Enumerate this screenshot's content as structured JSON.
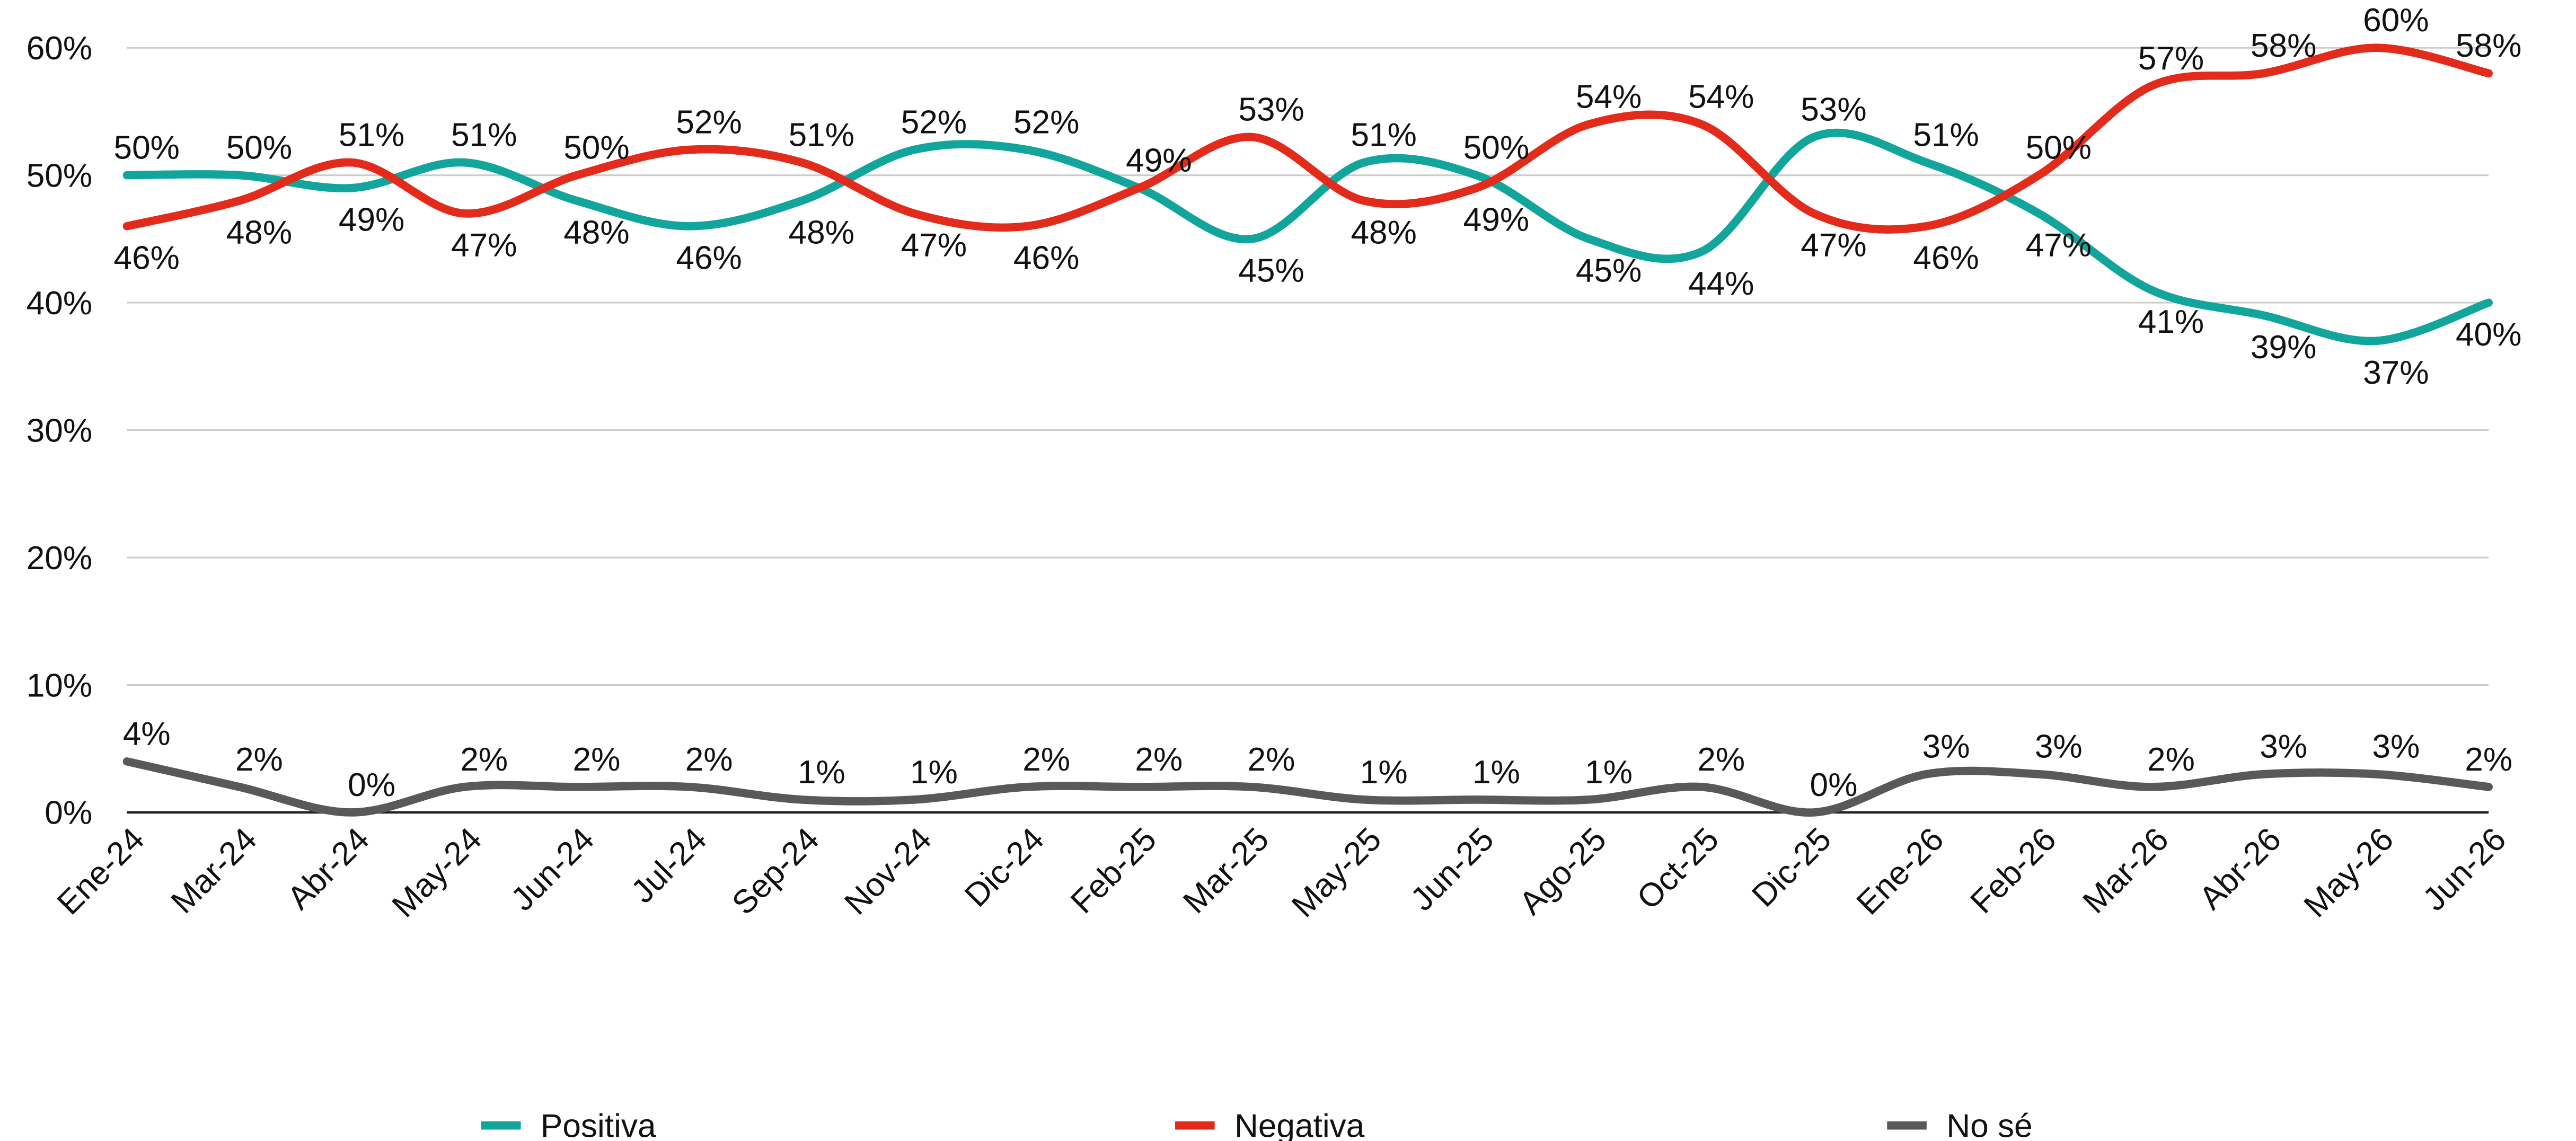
{
  "chart_data": {
    "type": "line",
    "categories": [
      "Ene-24",
      "Mar-24",
      "Abr-24",
      "May-24",
      "Jun-24",
      "Jul-24",
      "Sep-24",
      "Nov-24",
      "Dic-24",
      "Feb-25",
      "Mar-25",
      "May-25",
      "Jun-25",
      "Ago-25",
      "Oct-25",
      "Dic-25",
      "Ene-26",
      "Feb-26",
      "Mar-26",
      "Abr-26",
      "May-26",
      "Jun-26"
    ],
    "series": [
      {
        "name": "Positiva",
        "color": "#12a59c",
        "values": [
          50,
          50,
          49,
          51,
          48,
          46,
          48,
          52,
          52,
          49,
          45,
          51,
          50,
          45,
          44,
          53,
          51,
          47,
          41,
          39,
          37,
          40
        ],
        "value_labels": [
          "50%",
          "50%",
          "49%",
          "51%",
          "48%",
          "46%",
          "48%",
          "52%",
          "52%",
          "49%",
          "45%",
          "51%",
          "50%",
          "45%",
          "44%",
          "53%",
          "51%",
          "47%",
          "41%",
          "39%",
          "37%",
          "40%"
        ]
      },
      {
        "name": "Negativa",
        "color": "#e32b1b",
        "values": [
          46,
          48,
          51,
          47,
          50,
          52,
          51,
          47,
          46,
          49,
          53,
          48,
          49,
          54,
          54,
          47,
          46,
          50,
          57,
          58,
          60,
          58
        ],
        "value_labels": [
          "46%",
          "48%",
          "51%",
          "47%",
          "50%",
          "52%",
          "51%",
          "47%",
          "46%",
          "49%",
          "53%",
          "48%",
          "49%",
          "54%",
          "54%",
          "47%",
          "46%",
          "50%",
          "57%",
          "58%",
          "60%",
          "58%"
        ]
      },
      {
        "name": "No sé",
        "color": "#58595b",
        "values": [
          4,
          2,
          0,
          2,
          2,
          2,
          1,
          1,
          2,
          2,
          2,
          1,
          1,
          1,
          2,
          0,
          3,
          3,
          2,
          3,
          3,
          2
        ],
        "value_labels": [
          "4%",
          "2%",
          "0%",
          "2%",
          "2%",
          "2%",
          "1%",
          "1%",
          "2%",
          "2%",
          "2%",
          "1%",
          "1%",
          "1%",
          "2%",
          "0%",
          "3%",
          "3%",
          "2%",
          "3%",
          "3%",
          "2%"
        ]
      }
    ],
    "ylim": [
      0,
      60
    ],
    "yticks": [
      {
        "value": 0,
        "label": "0%"
      },
      {
        "value": 10,
        "label": "10%"
      },
      {
        "value": 20,
        "label": "20%"
      },
      {
        "value": 30,
        "label": "30%"
      },
      {
        "value": 40,
        "label": "40%"
      },
      {
        "value": 50,
        "label": "50%"
      },
      {
        "value": 60,
        "label": "60%"
      }
    ],
    "grid": true,
    "legend": "bottom"
  }
}
